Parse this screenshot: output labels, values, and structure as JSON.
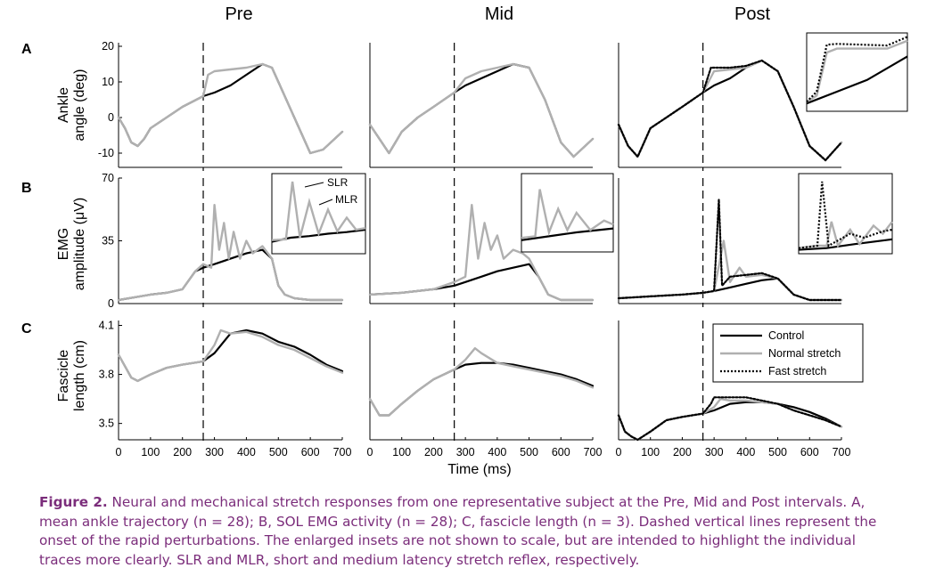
{
  "figure": {
    "column_titles": [
      "Pre",
      "Mid",
      "Post"
    ],
    "row_labels": [
      "A",
      "B",
      "C"
    ],
    "ylabels": {
      "A": [
        "Ankle",
        "angle (deg)"
      ],
      "B": [
        "EMG",
        "amplitude (μV)"
      ],
      "C": [
        "Fascicle",
        "length (cm)"
      ]
    },
    "xlabel": "Time (ms)",
    "inset_labels": {
      "slr": "SLR",
      "mlr": "MLR"
    },
    "legend": [
      "Control",
      "Normal stretch",
      "Fast stretch"
    ],
    "colors": {
      "control": "#000000",
      "normal": "#b0b0b0",
      "fast": "#000000",
      "caption": "#7b2d7b"
    }
  },
  "caption": {
    "label": "Figure 2.",
    "text": "Neural and mechanical stretch responses from one representative subject at the Pre, Mid and Post intervals. A, mean ankle trajectory (n = 28); B, SOL EMG activity (n = 28); C, fascicle length (n = 3). Dashed vertical lines represent the onset of the rapid perturbations. The enlarged insets are not shown to scale, but are intended to highlight the individual traces more clearly. SLR and MLR, short and medium latency stretch reflex, respectively."
  },
  "chart_data": [
    {
      "type": "line",
      "panel": "A-Pre",
      "title": "Pre",
      "ylabel": "Ankle angle (deg)",
      "xlim": [
        0,
        700
      ],
      "ylim": [
        -14,
        21
      ],
      "yticks": [
        -10,
        0,
        10,
        20
      ],
      "onset_ms": 265,
      "series": [
        {
          "name": "Control",
          "x": [
            0,
            20,
            40,
            60,
            80,
            100,
            150,
            200,
            265,
            300,
            350,
            400,
            450,
            480,
            500,
            550,
            600,
            640,
            700
          ],
          "y": [
            0,
            -3,
            -7,
            -8,
            -6,
            -3,
            0,
            3,
            6,
            7,
            9,
            12,
            15,
            14,
            10,
            0,
            -10,
            -9,
            -4
          ]
        },
        {
          "name": "Normal stretch",
          "x": [
            0,
            20,
            40,
            60,
            80,
            100,
            150,
            200,
            265,
            280,
            300,
            350,
            400,
            450,
            480,
            500,
            550,
            600,
            640,
            700
          ],
          "y": [
            0,
            -3,
            -7,
            -8,
            -6,
            -3,
            0,
            3,
            6,
            12,
            13,
            13.5,
            14,
            15,
            14,
            10,
            0,
            -10,
            -9,
            -4
          ]
        }
      ]
    },
    {
      "type": "line",
      "panel": "A-Mid",
      "title": "Mid",
      "xlim": [
        0,
        700
      ],
      "ylim": [
        -14,
        21
      ],
      "onset_ms": 265,
      "series": [
        {
          "name": "Control",
          "x": [
            0,
            30,
            60,
            80,
            100,
            150,
            200,
            265,
            300,
            350,
            400,
            450,
            500,
            550,
            600,
            640,
            700
          ],
          "y": [
            -2,
            -6,
            -10,
            -7,
            -4,
            0,
            3,
            7,
            9,
            11,
            13,
            15,
            14,
            5,
            -7,
            -11,
            -6
          ]
        },
        {
          "name": "Normal stretch",
          "x": [
            0,
            30,
            60,
            80,
            100,
            150,
            200,
            265,
            300,
            350,
            400,
            450,
            500,
            550,
            600,
            640,
            700
          ],
          "y": [
            -2,
            -6,
            -10,
            -7,
            -4,
            0,
            3,
            7,
            11,
            13,
            14,
            15,
            14,
            5,
            -7,
            -11,
            -6
          ]
        }
      ]
    },
    {
      "type": "line",
      "panel": "A-Post",
      "title": "Post",
      "xlim": [
        0,
        700
      ],
      "ylim": [
        -14,
        21
      ],
      "onset_ms": 265,
      "series": [
        {
          "name": "Control",
          "x": [
            0,
            30,
            60,
            80,
            100,
            150,
            200,
            265,
            300,
            350,
            400,
            450,
            500,
            550,
            600,
            650,
            700
          ],
          "y": [
            -2,
            -8,
            -11,
            -7,
            -3,
            0,
            3,
            7,
            9,
            11,
            14,
            16,
            13,
            3,
            -8,
            -12,
            -7
          ]
        },
        {
          "name": "Normal stretch",
          "x": [
            0,
            30,
            60,
            80,
            100,
            150,
            200,
            265,
            300,
            350,
            400,
            450,
            500,
            550,
            600,
            650,
            700
          ],
          "y": [
            -2,
            -8,
            -11,
            -7,
            -3,
            0,
            3,
            7,
            13,
            13.5,
            14,
            16,
            13,
            3,
            -8,
            -12,
            -7
          ]
        },
        {
          "name": "Fast stretch",
          "x": [
            0,
            30,
            60,
            80,
            100,
            150,
            200,
            265,
            290,
            300,
            350,
            400,
            450,
            500,
            550,
            600,
            650,
            700
          ],
          "y": [
            -2,
            -8,
            -11,
            -7,
            -3,
            0,
            3,
            7,
            14,
            14,
            14,
            14.5,
            16,
            13,
            3,
            -8,
            -12,
            -7
          ]
        }
      ]
    },
    {
      "type": "line",
      "panel": "B-Pre",
      "ylabel": "EMG amplitude (μV)",
      "xlim": [
        0,
        700
      ],
      "ylim": [
        0,
        70
      ],
      "yticks": [
        0,
        35,
        70
      ],
      "onset_ms": 265,
      "series": [
        {
          "name": "Control",
          "x": [
            0,
            100,
            150,
            200,
            240,
            265,
            300,
            350,
            400,
            450,
            480,
            500,
            520,
            550,
            600,
            700
          ],
          "y": [
            2,
            5,
            6,
            8,
            18,
            20,
            22,
            25,
            28,
            30,
            25,
            10,
            5,
            3,
            2,
            2
          ]
        },
        {
          "name": "Normal stretch",
          "x": [
            0,
            100,
            150,
            200,
            240,
            265,
            290,
            300,
            315,
            330,
            345,
            360,
            380,
            400,
            420,
            450,
            480,
            500,
            520,
            550,
            600,
            700
          ],
          "y": [
            2,
            5,
            6,
            8,
            18,
            22,
            20,
            55,
            30,
            45,
            25,
            40,
            25,
            35,
            28,
            32,
            25,
            10,
            5,
            3,
            2,
            2
          ]
        }
      ]
    },
    {
      "type": "line",
      "panel": "B-Mid",
      "xlim": [
        0,
        700
      ],
      "ylim": [
        0,
        70
      ],
      "onset_ms": 265,
      "series": [
        {
          "name": "Control",
          "x": [
            0,
            100,
            150,
            200,
            265,
            300,
            350,
            400,
            450,
            500,
            530,
            560,
            600,
            700
          ],
          "y": [
            5,
            6,
            7,
            8,
            10,
            12,
            15,
            18,
            20,
            22,
            15,
            5,
            2,
            2
          ]
        },
        {
          "name": "Normal stretch",
          "x": [
            0,
            100,
            150,
            200,
            265,
            300,
            320,
            340,
            360,
            380,
            400,
            420,
            450,
            480,
            500,
            530,
            560,
            600,
            700
          ],
          "y": [
            5,
            6,
            7,
            8,
            12,
            15,
            55,
            25,
            45,
            30,
            38,
            25,
            30,
            28,
            25,
            15,
            5,
            2,
            2
          ]
        }
      ]
    },
    {
      "type": "line",
      "panel": "B-Post",
      "xlim": [
        0,
        700
      ],
      "ylim": [
        0,
        70
      ],
      "onset_ms": 265,
      "series": [
        {
          "name": "Control",
          "x": [
            0,
            100,
            200,
            265,
            300,
            350,
            400,
            450,
            500,
            550,
            600,
            700
          ],
          "y": [
            3,
            4,
            5,
            6,
            7,
            9,
            11,
            13,
            14,
            5,
            2,
            2
          ]
        },
        {
          "name": "Normal stretch",
          "x": [
            0,
            100,
            200,
            265,
            300,
            330,
            350,
            380,
            400,
            450,
            500,
            550,
            600,
            700
          ],
          "y": [
            3,
            4,
            5,
            6,
            7,
            35,
            12,
            20,
            15,
            16,
            14,
            5,
            2,
            2
          ]
        },
        {
          "name": "Fast stretch",
          "x": [
            0,
            100,
            200,
            265,
            300,
            315,
            325,
            350,
            400,
            450,
            500,
            550,
            600,
            700
          ],
          "y": [
            3,
            4,
            5,
            6,
            7,
            58,
            10,
            15,
            16,
            17,
            14,
            5,
            2,
            2
          ]
        }
      ]
    },
    {
      "type": "line",
      "panel": "C-Pre",
      "ylabel": "Fascicle length (cm)",
      "xlim": [
        0,
        700
      ],
      "ylim": [
        3.4,
        4.13
      ],
      "yticks": [
        3.5,
        3.8,
        4.1
      ],
      "onset_ms": 265,
      "series": [
        {
          "name": "Control",
          "x": [
            0,
            20,
            40,
            60,
            80,
            100,
            150,
            200,
            265,
            300,
            350,
            400,
            450,
            500,
            550,
            600,
            650,
            700
          ],
          "y": [
            3.92,
            3.85,
            3.78,
            3.76,
            3.78,
            3.8,
            3.84,
            3.86,
            3.88,
            3.93,
            4.05,
            4.07,
            4.05,
            4.0,
            3.97,
            3.92,
            3.86,
            3.82
          ]
        },
        {
          "name": "Normal stretch",
          "x": [
            0,
            20,
            40,
            60,
            80,
            100,
            150,
            200,
            265,
            300,
            320,
            350,
            400,
            450,
            500,
            550,
            600,
            650,
            700
          ],
          "y": [
            3.92,
            3.85,
            3.78,
            3.76,
            3.78,
            3.8,
            3.84,
            3.86,
            3.88,
            3.98,
            4.07,
            4.05,
            4.06,
            4.03,
            3.98,
            3.95,
            3.9,
            3.85,
            3.81
          ]
        }
      ]
    },
    {
      "type": "line",
      "panel": "C-Mid",
      "xlim": [
        0,
        700
      ],
      "ylim": [
        3.4,
        4.13
      ],
      "onset_ms": 265,
      "series": [
        {
          "name": "Control",
          "x": [
            0,
            30,
            60,
            100,
            150,
            200,
            265,
            300,
            350,
            400,
            450,
            500,
            550,
            600,
            650,
            700
          ],
          "y": [
            3.65,
            3.55,
            3.55,
            3.62,
            3.7,
            3.77,
            3.83,
            3.86,
            3.87,
            3.87,
            3.86,
            3.84,
            3.82,
            3.8,
            3.77,
            3.73
          ]
        },
        {
          "name": "Normal stretch",
          "x": [
            0,
            30,
            60,
            100,
            150,
            200,
            265,
            300,
            330,
            350,
            400,
            450,
            500,
            550,
            600,
            650,
            700
          ],
          "y": [
            3.65,
            3.55,
            3.55,
            3.62,
            3.7,
            3.77,
            3.83,
            3.89,
            3.96,
            3.93,
            3.87,
            3.85,
            3.83,
            3.81,
            3.79,
            3.76,
            3.72
          ]
        }
      ]
    },
    {
      "type": "line",
      "panel": "C-Post",
      "xlim": [
        0,
        700
      ],
      "ylim": [
        3.4,
        4.13
      ],
      "onset_ms": 265,
      "series": [
        {
          "name": "Control",
          "x": [
            0,
            20,
            40,
            60,
            100,
            150,
            200,
            265,
            300,
            350,
            400,
            450,
            500,
            550,
            600,
            650,
            700
          ],
          "y": [
            3.55,
            3.45,
            3.42,
            3.4,
            3.45,
            3.52,
            3.54,
            3.56,
            3.58,
            3.62,
            3.63,
            3.63,
            3.62,
            3.6,
            3.57,
            3.53,
            3.48
          ]
        },
        {
          "name": "Normal stretch",
          "x": [
            0,
            20,
            40,
            60,
            100,
            150,
            200,
            265,
            300,
            320,
            350,
            400,
            450,
            500,
            550,
            600,
            650,
            700
          ],
          "y": [
            3.55,
            3.45,
            3.42,
            3.4,
            3.45,
            3.52,
            3.54,
            3.56,
            3.6,
            3.65,
            3.64,
            3.64,
            3.63,
            3.62,
            3.58,
            3.55,
            3.52,
            3.48
          ]
        },
        {
          "name": "Fast stretch",
          "x": [
            0,
            20,
            40,
            60,
            100,
            150,
            200,
            265,
            290,
            300,
            350,
            400,
            450,
            500,
            550,
            600,
            650,
            700
          ],
          "y": [
            3.55,
            3.45,
            3.42,
            3.4,
            3.45,
            3.52,
            3.54,
            3.56,
            3.62,
            3.66,
            3.66,
            3.66,
            3.64,
            3.62,
            3.58,
            3.55,
            3.52,
            3.48
          ]
        }
      ]
    }
  ]
}
